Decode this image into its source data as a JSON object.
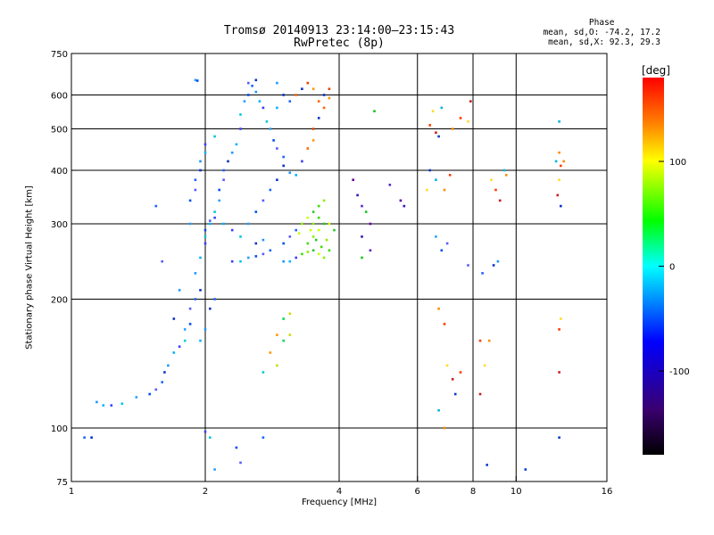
{
  "header": {
    "title_line1": "Tromsø 20140913 23:14:00–23:15:43",
    "title_line2": "RwPretec (8p)"
  },
  "phase_box": {
    "title": "Phase",
    "line1": "mean, sd,O: -74.2, 17.2",
    "line2": "mean, sd,X:  92.3, 29.3"
  },
  "chart_data": {
    "type": "scatter",
    "xlabel": "Frequency [MHz]",
    "ylabel": "Stationary phase Virtual Height [km]",
    "xscale": "log",
    "yscale": "log",
    "xlim": [
      1,
      16
    ],
    "ylim": [
      75,
      750
    ],
    "x_ticks": [
      1,
      2,
      4,
      6,
      8,
      10,
      16
    ],
    "y_ticks": [
      75,
      100,
      200,
      300,
      400,
      500,
      600,
      750
    ],
    "x_gridlines": [
      2,
      4,
      6,
      8,
      10
    ],
    "y_gridlines": [
      100,
      200,
      300,
      400,
      500,
      600
    ],
    "grid": true,
    "colorbar": {
      "label": "[deg]",
      "range": [
        -180,
        180
      ],
      "ticks": [
        100,
        0,
        -100
      ],
      "colors": [
        "#000000",
        "#3a0070",
        "#0000ff",
        "#00ffff",
        "#00ff00",
        "#ffff00",
        "#ff8000",
        "#ff0000"
      ]
    },
    "series": [
      {
        "points": [
          [
            1.07,
            95
          ],
          [
            1.11,
            95
          ],
          [
            1.14,
            115
          ],
          [
            1.18,
            113
          ],
          [
            1.23,
            113
          ],
          [
            1.3,
            114
          ],
          [
            1.4,
            118
          ],
          [
            1.5,
            120
          ],
          [
            1.55,
            123
          ],
          [
            1.6,
            128
          ],
          [
            1.62,
            135
          ],
          [
            1.65,
            140
          ],
          [
            1.7,
            150
          ],
          [
            1.75,
            155
          ],
          [
            1.8,
            160
          ],
          [
            1.8,
            170
          ],
          [
            1.85,
            175
          ],
          [
            1.85,
            190
          ],
          [
            1.9,
            200
          ],
          [
            1.95,
            210
          ],
          [
            1.9,
            230
          ],
          [
            1.95,
            250
          ],
          [
            2.0,
            270
          ],
          [
            2.0,
            280
          ],
          [
            1.85,
            300
          ],
          [
            1.85,
            340
          ],
          [
            1.9,
            360
          ],
          [
            1.9,
            380
          ],
          [
            1.95,
            400
          ],
          [
            1.95,
            420
          ],
          [
            2.0,
            440
          ],
          [
            2.0,
            460
          ],
          [
            2.1,
            480
          ],
          [
            1.9,
            650
          ],
          [
            1.92,
            648
          ],
          [
            1.6,
            245
          ],
          [
            1.55,
            330
          ],
          [
            1.7,
            180
          ],
          [
            1.75,
            210
          ],
          [
            2.05,
            300
          ],
          [
            2.1,
            310
          ],
          [
            2.1,
            320
          ],
          [
            2.15,
            340
          ],
          [
            2.15,
            360
          ],
          [
            2.2,
            380
          ],
          [
            2.2,
            400
          ],
          [
            2.25,
            420
          ],
          [
            2.3,
            440
          ],
          [
            2.35,
            460
          ],
          [
            2.4,
            500
          ],
          [
            2.4,
            540
          ],
          [
            2.45,
            580
          ],
          [
            2.5,
            600
          ],
          [
            2.5,
            640
          ],
          [
            2.55,
            630
          ],
          [
            2.6,
            650
          ],
          [
            2.6,
            610
          ],
          [
            2.65,
            580
          ],
          [
            2.7,
            560
          ],
          [
            2.75,
            520
          ],
          [
            2.8,
            500
          ],
          [
            2.85,
            470
          ],
          [
            2.9,
            450
          ],
          [
            3.0,
            430
          ],
          [
            3.0,
            410
          ],
          [
            3.1,
            395
          ],
          [
            3.2,
            390
          ],
          [
            3.3,
            420
          ],
          [
            3.4,
            450
          ],
          [
            3.5,
            470
          ],
          [
            3.5,
            500
          ],
          [
            3.6,
            530
          ],
          [
            3.7,
            560
          ],
          [
            3.8,
            590
          ],
          [
            3.8,
            620
          ],
          [
            3.7,
            600
          ],
          [
            3.6,
            580
          ],
          [
            3.5,
            620
          ],
          [
            3.4,
            640
          ],
          [
            3.3,
            620
          ],
          [
            3.2,
            600
          ],
          [
            3.1,
            580
          ],
          [
            3.0,
            600
          ],
          [
            2.9,
            640
          ],
          [
            2.9,
            560
          ],
          [
            2.3,
            245
          ],
          [
            2.4,
            245
          ],
          [
            2.5,
            250
          ],
          [
            2.6,
            252
          ],
          [
            2.7,
            255
          ],
          [
            2.8,
            260
          ],
          [
            2.6,
            270
          ],
          [
            2.7,
            275
          ],
          [
            2.2,
            300
          ],
          [
            2.3,
            290
          ],
          [
            2.4,
            280
          ],
          [
            2.5,
            300
          ],
          [
            2.6,
            320
          ],
          [
            2.7,
            340
          ],
          [
            2.8,
            360
          ],
          [
            2.9,
            380
          ],
          [
            3.0,
            245
          ],
          [
            3.1,
            245
          ],
          [
            3.2,
            250
          ],
          [
            3.3,
            255
          ],
          [
            3.4,
            258
          ],
          [
            3.0,
            270
          ],
          [
            3.1,
            280
          ],
          [
            3.2,
            290
          ],
          [
            3.3,
            300
          ],
          [
            3.4,
            310
          ],
          [
            3.5,
            320
          ],
          [
            3.6,
            330
          ],
          [
            3.7,
            340
          ],
          [
            3.8,
            300
          ],
          [
            3.9,
            290
          ],
          [
            3.8,
            260
          ],
          [
            3.7,
            250
          ],
          [
            3.6,
            255
          ],
          [
            3.5,
            260
          ],
          [
            3.4,
            270
          ],
          [
            3.5,
            280
          ],
          [
            3.6,
            290
          ],
          [
            3.7,
            300
          ],
          [
            3.6,
            310
          ],
          [
            3.5,
            300
          ],
          [
            3.45,
            290
          ],
          [
            3.55,
            275
          ],
          [
            3.65,
            265
          ],
          [
            3.75,
            275
          ],
          [
            3.25,
            285
          ],
          [
            4.3,
            380
          ],
          [
            4.4,
            350
          ],
          [
            4.5,
            330
          ],
          [
            4.6,
            320
          ],
          [
            4.7,
            300
          ],
          [
            4.5,
            280
          ],
          [
            4.7,
            260
          ],
          [
            4.5,
            250
          ],
          [
            5.5,
            340
          ],
          [
            5.6,
            330
          ],
          [
            5.2,
            370
          ],
          [
            4.8,
            550
          ],
          [
            3.0,
            180
          ],
          [
            3.1,
            185
          ],
          [
            2.9,
            165
          ],
          [
            3.0,
            160
          ],
          [
            3.1,
            165
          ],
          [
            2.8,
            150
          ],
          [
            2.7,
            135
          ],
          [
            2.9,
            140
          ],
          [
            2.0,
            290
          ],
          [
            2.05,
            305
          ],
          [
            2.1,
            200
          ],
          [
            2.05,
            190
          ],
          [
            2.0,
            170
          ],
          [
            1.95,
            160
          ],
          [
            2.0,
            98
          ],
          [
            2.05,
            95
          ],
          [
            2.1,
            80
          ],
          [
            2.35,
            90
          ],
          [
            2.4,
            83
          ],
          [
            2.7,
            95
          ],
          [
            6.4,
            510
          ],
          [
            6.5,
            550
          ],
          [
            6.6,
            490
          ],
          [
            6.7,
            480
          ],
          [
            6.8,
            560
          ],
          [
            7.2,
            500
          ],
          [
            7.5,
            530
          ],
          [
            7.8,
            520
          ],
          [
            7.9,
            580
          ],
          [
            6.4,
            400
          ],
          [
            6.6,
            380
          ],
          [
            6.9,
            360
          ],
          [
            7.1,
            390
          ],
          [
            6.3,
            360
          ],
          [
            6.6,
            280
          ],
          [
            6.8,
            260
          ],
          [
            7.0,
            270
          ],
          [
            6.7,
            190
          ],
          [
            6.9,
            175
          ],
          [
            7.0,
            140
          ],
          [
            7.2,
            130
          ],
          [
            7.3,
            120
          ],
          [
            6.7,
            110
          ],
          [
            6.9,
            100
          ],
          [
            7.5,
            135
          ],
          [
            7.8,
            240
          ],
          [
            8.4,
            230
          ],
          [
            8.9,
            240
          ],
          [
            9.1,
            245
          ],
          [
            8.7,
            160
          ],
          [
            8.3,
            160
          ],
          [
            8.5,
            140
          ],
          [
            8.3,
            120
          ],
          [
            8.6,
            82
          ],
          [
            9.4,
            400
          ],
          [
            9.5,
            390
          ],
          [
            9.0,
            360
          ],
          [
            8.8,
            380
          ],
          [
            9.2,
            340
          ],
          [
            10.5,
            80
          ],
          [
            12.3,
            420
          ],
          [
            12.5,
            440
          ],
          [
            12.6,
            410
          ],
          [
            12.5,
            380
          ],
          [
            12.4,
            350
          ],
          [
            12.6,
            330
          ],
          [
            12.5,
            520
          ],
          [
            12.8,
            420
          ],
          [
            12.5,
            170
          ],
          [
            12.6,
            180
          ],
          [
            12.5,
            135
          ],
          [
            12.5,
            95
          ]
        ]
      }
    ]
  }
}
